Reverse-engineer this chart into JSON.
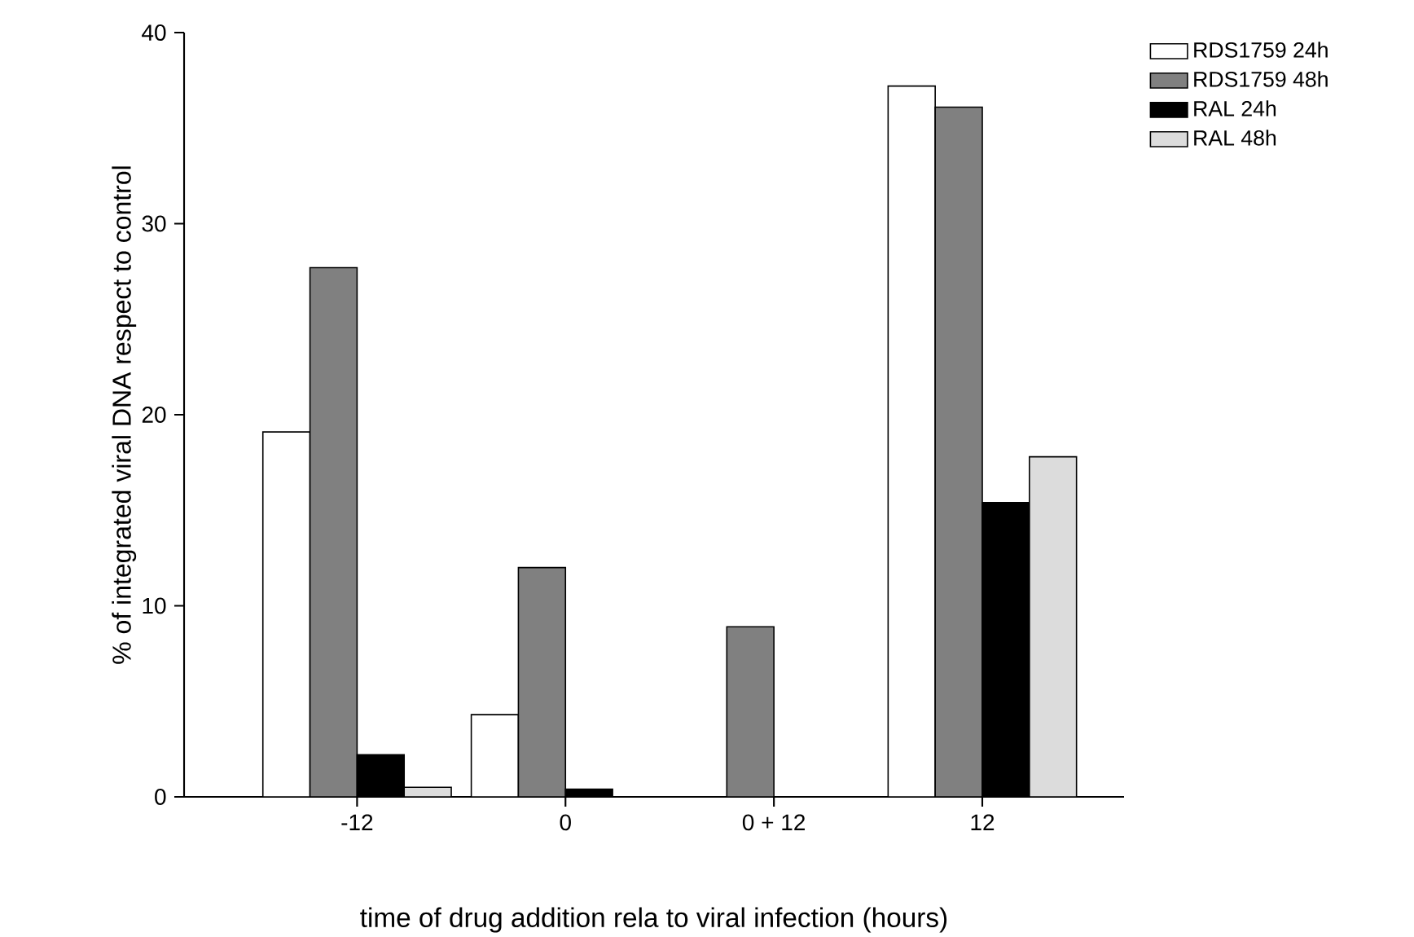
{
  "chart_data": {
    "type": "bar",
    "xlabel": "time of drug addition rela to viral infection (hours)",
    "ylabel": "% of integrated viral DNA respect to control",
    "categories": [
      "-12",
      "0",
      "0 + 12",
      "12"
    ],
    "series": [
      {
        "name": "RDS1759 24h",
        "color": "#ffffff",
        "values": [
          19.1,
          4.3,
          null,
          37.2
        ]
      },
      {
        "name": "RDS1759 48h",
        "color": "#808080",
        "values": [
          27.7,
          12.0,
          8.9,
          36.1
        ]
      },
      {
        "name": "RAL 24h",
        "color": "#000000",
        "values": [
          2.2,
          0.4,
          null,
          15.4
        ]
      },
      {
        "name": "RAL 48h",
        "color": "#dcdcdc",
        "values": [
          0.5,
          null,
          null,
          17.8
        ]
      }
    ],
    "ylim": [
      0,
      40
    ],
    "yticks": [
      0,
      10,
      20,
      30,
      40
    ],
    "grid": false,
    "legend": "top right"
  }
}
